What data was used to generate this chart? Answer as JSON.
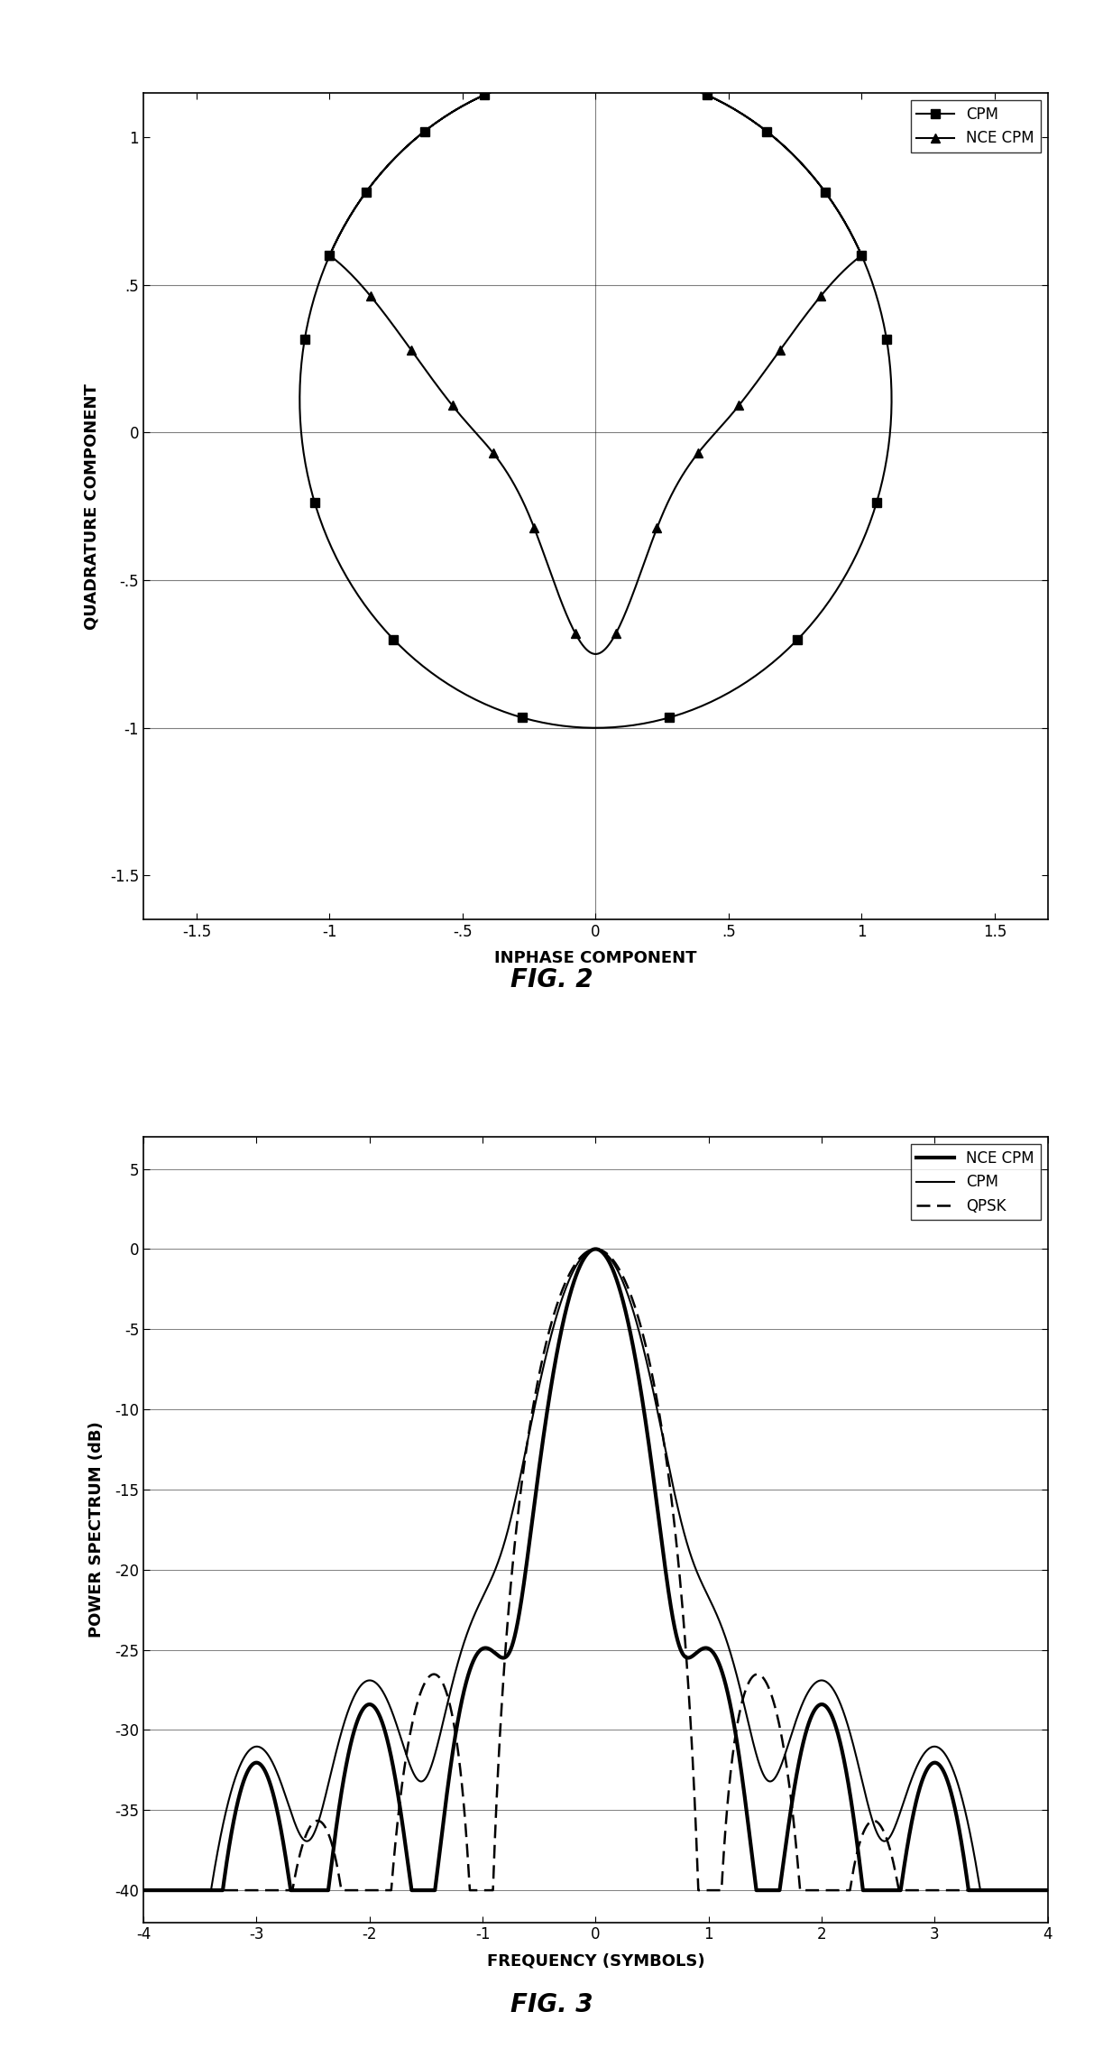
{
  "fig2": {
    "title": "FIG. 2",
    "xlabel": "INPHASE COMPONENT",
    "ylabel": "QUADRATURE COMPONENT",
    "xlim": [
      -1.7,
      1.7
    ],
    "ylim": [
      -1.65,
      1.15
    ],
    "xticks": [
      -1.5,
      -1.0,
      -0.5,
      0.0,
      0.5,
      1.0,
      1.5
    ],
    "yticks": [
      -1.5,
      -1.0,
      -0.5,
      0.0,
      0.5,
      1.0
    ],
    "xtick_labels": [
      "-1.5",
      "-1",
      "-.5",
      "0",
      ".5",
      "1",
      "1.5"
    ],
    "ytick_labels": [
      "-1.5",
      "-1",
      "-.5",
      "0",
      ".5",
      "1"
    ],
    "hlines": [
      0.5,
      0.0,
      -0.5,
      -1.0
    ],
    "vlines": [
      0.0
    ]
  },
  "fig3": {
    "title": "FIG. 3",
    "xlabel": "FREQUENCY (SYMBOLS)",
    "ylabel": "POWER SPECTRUM (dB)",
    "xlim": [
      -4,
      4
    ],
    "ylim": [
      -42,
      7
    ],
    "xticks": [
      -4,
      -3,
      -2,
      -1,
      0,
      1,
      2,
      3,
      4
    ],
    "yticks": [
      -40,
      -35,
      -30,
      -25,
      -20,
      -15,
      -10,
      -5,
      0,
      5
    ],
    "legend_labels": [
      "NCE CPM",
      "CPM",
      "QPSK"
    ]
  }
}
